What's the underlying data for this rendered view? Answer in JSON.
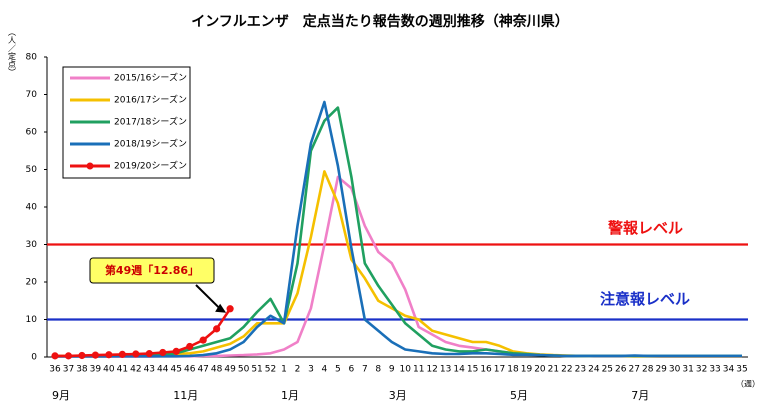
{
  "chart_data": {
    "type": "line",
    "title": "インフルエンザ　定点当たり報告数の週別推移（神奈川県）",
    "y_label": "（人／定点）",
    "x_label": "（週）",
    "categories": [
      "36",
      "37",
      "38",
      "39",
      "40",
      "41",
      "42",
      "43",
      "44",
      "45",
      "46",
      "47",
      "48",
      "49",
      "50",
      "51",
      "52",
      "1",
      "2",
      "3",
      "4",
      "5",
      "6",
      "7",
      "8",
      "9",
      "10",
      "11",
      "12",
      "13",
      "14",
      "15",
      "16",
      "17",
      "18",
      "19",
      "20",
      "21",
      "22",
      "23",
      "24",
      "25",
      "26",
      "27",
      "28",
      "29",
      "30",
      "31",
      "32",
      "33",
      "34",
      "35"
    ],
    "months": [
      {
        "label": "9月",
        "at": "36"
      },
      {
        "label": "11月",
        "at": "45"
      },
      {
        "label": "1月",
        "at": "1"
      },
      {
        "label": "3月",
        "at": "9"
      },
      {
        "label": "5月",
        "at": "18"
      },
      {
        "label": "7月",
        "at": "27"
      }
    ],
    "ylim": [
      0,
      80
    ],
    "yticks": [
      0,
      10,
      20,
      30,
      40,
      50,
      60,
      70,
      80
    ],
    "series": [
      {
        "name": "2015/16シーズン",
        "color": "#f080c8",
        "values": [
          0.1,
          0.1,
          0.1,
          0.1,
          0.1,
          0.1,
          0.1,
          0.1,
          0.2,
          0.2,
          0.2,
          0.3,
          0.3,
          0.4,
          0.5,
          0.7,
          1.0,
          2,
          4,
          13,
          30,
          48,
          45,
          35,
          28,
          25,
          18,
          8,
          6,
          4,
          3,
          2.5,
          2,
          1.5,
          1,
          0.7,
          0.5,
          0.4,
          0.3,
          0.3,
          0.2,
          0.2,
          0.2,
          0.2,
          0.2,
          0.1,
          0.1,
          0.1,
          0.1,
          0.1,
          0.1,
          0.1
        ]
      },
      {
        "name": "2016/17シーズン",
        "color": "#f5c000",
        "values": [
          0.3,
          0.3,
          0.3,
          0.3,
          0.4,
          0.4,
          0.5,
          0.5,
          0.6,
          0.8,
          1,
          1.5,
          2.5,
          3.5,
          5.5,
          9,
          9,
          9,
          17,
          32,
          49.5,
          41,
          26,
          21,
          15,
          13,
          11,
          10,
          7,
          6,
          5,
          4,
          4,
          3,
          1.5,
          1,
          0.7,
          0.5,
          0.4,
          0.3,
          0.3,
          0.3,
          0.3,
          0.2,
          0.2,
          0.2,
          0.2,
          0.2,
          0.2,
          0.2,
          0.2,
          0.2
        ]
      },
      {
        "name": "2017/18シーズン",
        "color": "#20a060",
        "values": [
          0.2,
          0.2,
          0.2,
          0.2,
          0.2,
          0.3,
          0.3,
          0.4,
          0.5,
          1,
          2,
          3,
          4,
          5,
          8,
          12,
          15.5,
          9,
          25,
          55,
          63,
          66.5,
          48,
          25,
          19,
          14,
          9,
          6,
          3,
          2,
          1.5,
          1.5,
          2,
          1.5,
          1,
          0.8,
          0.5,
          0.4,
          0.3,
          0.3,
          0.3,
          0.3,
          0.3,
          0.3,
          0.3,
          0.3,
          0.3,
          0.3,
          0.3,
          0.3,
          0.3,
          0.3
        ]
      },
      {
        "name": "2018/19シーズン",
        "color": "#1a6fb8",
        "values": [
          0.2,
          0.2,
          0.2,
          0.2,
          0.2,
          0.2,
          0.2,
          0.2,
          0.2,
          0.2,
          0.3,
          0.5,
          1,
          2,
          4,
          8,
          11,
          9,
          35,
          57,
          68,
          51,
          29,
          10,
          7,
          4,
          2,
          1.5,
          1,
          0.8,
          0.8,
          1,
          1,
          0.8,
          0.6,
          0.6,
          0.5,
          0.4,
          0.3,
          0.3,
          0.3,
          0.3,
          0.3,
          0.4,
          0.3,
          0.3,
          0.3,
          0.3,
          0.3,
          0.3,
          0.3,
          0.3
        ]
      },
      {
        "name": "2019/20シーズン",
        "color": "#ee1111",
        "markers": true,
        "values": [
          0.3,
          0.3,
          0.4,
          0.5,
          0.6,
          0.7,
          0.8,
          0.9,
          1.2,
          1.5,
          2.8,
          4.5,
          7.5,
          12.86,
          null,
          null,
          null,
          null,
          null,
          null,
          null,
          null,
          null,
          null,
          null,
          null,
          null,
          null,
          null,
          null,
          null,
          null,
          null,
          null,
          null,
          null,
          null,
          null,
          null,
          null,
          null,
          null,
          null,
          null,
          null,
          null,
          null,
          null,
          null,
          null,
          null,
          null
        ]
      }
    ],
    "thresholds": [
      {
        "value": 30,
        "label": "警報レベル",
        "color": "#ee1111"
      },
      {
        "value": 10,
        "label": "注意報レベル",
        "color": "#1a30c8"
      }
    ],
    "annotation": {
      "text": "第49週「12.86」",
      "at": "49",
      "series": 4
    }
  }
}
